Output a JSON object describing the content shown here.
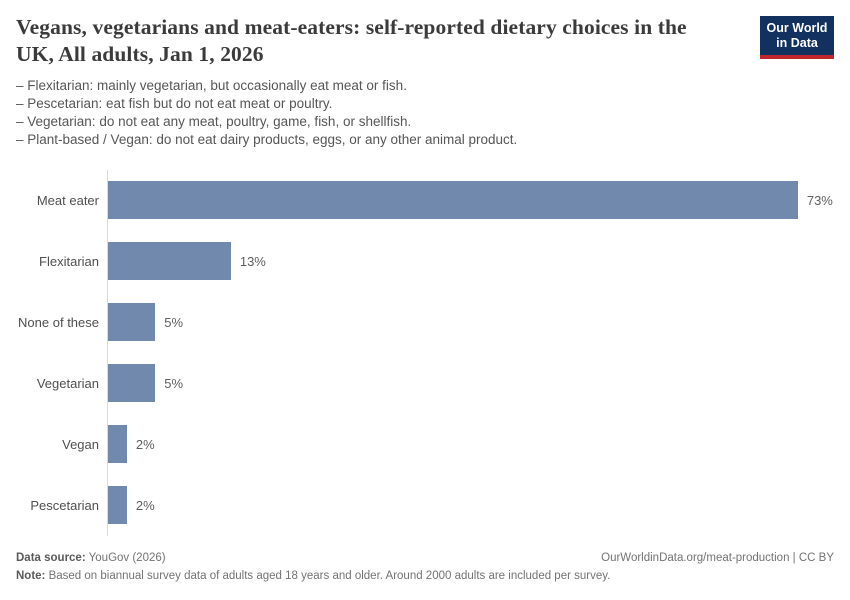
{
  "header": {
    "title": "Vegans, vegetarians and meat-eaters: self-reported dietary choices in the UK, All adults, Jan 1, 2026",
    "logo": {
      "line1": "Our World",
      "line2": "in Data"
    }
  },
  "subtitle_lines": [
    "– Flexitarian: mainly vegetarian, but occasionally eat meat or fish.",
    "– Pescetarian: eat fish but do not eat meat or poultry.",
    "– Vegetarian: do not eat any meat, poultry, game, fish, or shellfish.",
    "– Plant-based / Vegan: do not eat dairy products, eggs, or any other animal product."
  ],
  "chart_data": {
    "type": "bar",
    "orientation": "horizontal",
    "title": "Vegans, vegetarians and meat-eaters: self-reported dietary choices in the UK, All adults, Jan 1, 2026",
    "categories": [
      "Meat eater",
      "Flexitarian",
      "None of these",
      "Vegetarian",
      "Vegan",
      "Pescetarian"
    ],
    "values": [
      73,
      13,
      5,
      5,
      2,
      2
    ],
    "value_labels": [
      "73%",
      "13%",
      "5%",
      "5%",
      "2%",
      "2%"
    ],
    "unit": "%",
    "xlim": [
      0,
      77
    ],
    "grid": false,
    "legend": "none",
    "bar_color": "#7189ad",
    "axis_color": "#d7d9e0"
  },
  "footer": {
    "data_source_label": "Data source:",
    "data_source_value": " YouGov (2026)",
    "note_label": "Note:",
    "note_value": " Based on biannual survey data of adults aged 18 years and older. Around 2000 adults are included per survey.",
    "url": "OurWorldinData.org/meat-production | CC BY"
  },
  "colors": {
    "logo_background": "#12315f",
    "logo_stripe": "#c0272d",
    "title_text": "#3b3b3b",
    "subtitle_text": "#565656",
    "label_text": "#4f4f4f",
    "footer_text": "#737373"
  }
}
